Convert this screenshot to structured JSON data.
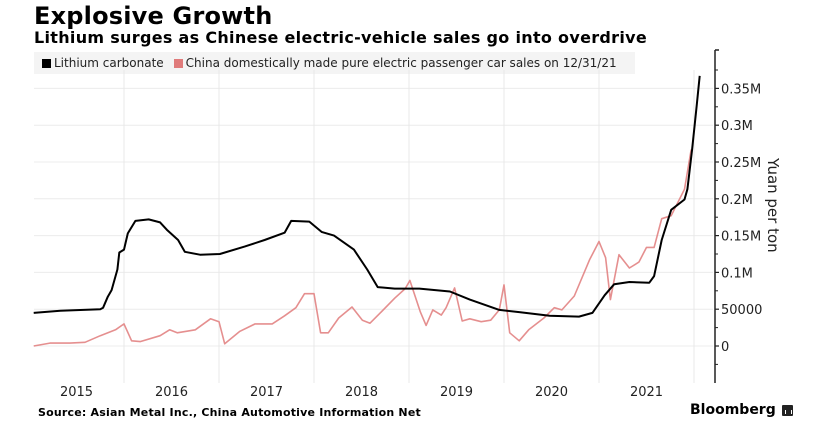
{
  "header": {
    "title": "Explosive Growth",
    "subtitle": "Lithium surges as Chinese electric-vehicle sales go into overdrive"
  },
  "footer": {
    "source": "Source: Asian Metal Inc., China Automotive Information Net",
    "brand": "Bloomberg",
    "brand_icon": "bloomberg-chart-icon"
  },
  "chart_data": {
    "type": "line",
    "title": "Explosive Growth",
    "subtitle": "Lithium surges as Chinese electric-vehicle sales go into overdrive",
    "xlabel": "",
    "ylabel": "Yuan per ton",
    "y_axis_side": "right",
    "ylim": [
      -45000,
      375000
    ],
    "xlim": [
      2015.0,
      2022.2
    ],
    "grid": true,
    "legend_position": "top-left",
    "x_tick_labels": [
      "2015",
      "2016",
      "2017",
      "2018",
      "2019",
      "2020",
      "2021"
    ],
    "y_ticks": [
      0,
      50000,
      100000,
      150000,
      200000,
      250000,
      300000,
      350000
    ],
    "y_tick_labels": [
      "0",
      "50000",
      "0.1M",
      "0.15M",
      "0.2M",
      "0.25M",
      "0.3M",
      "0.35M"
    ],
    "series": [
      {
        "name": "Lithium carbonate",
        "color": "#000000",
        "x": [
          2015.05,
          2015.33,
          2015.75,
          2015.78,
          2015.83,
          2015.87,
          2015.93,
          2015.95,
          2016.0,
          2016.04,
          2016.12,
          2016.26,
          2016.38,
          2016.45,
          2016.57,
          2016.64,
          2016.8,
          2017.01,
          2017.27,
          2017.48,
          2017.69,
          2017.76,
          2017.95,
          2018.08,
          2018.21,
          2018.42,
          2018.56,
          2018.67,
          2018.85,
          2019.11,
          2019.43,
          2019.64,
          2019.95,
          2020.16,
          2020.48,
          2020.79,
          2020.93,
          2021.06,
          2021.16,
          2021.32,
          2021.53,
          2021.58,
          2021.66,
          2021.76,
          2021.9,
          2021.93,
          2021.98,
          2022.03,
          2022.06
        ],
        "values": [
          45000,
          48000,
          50000,
          52000,
          67000,
          76000,
          104000,
          127000,
          131000,
          153000,
          170000,
          172000,
          168000,
          158000,
          144000,
          128000,
          124000,
          125000,
          135000,
          144000,
          154000,
          170000,
          169000,
          155000,
          150000,
          131000,
          104000,
          80000,
          78000,
          78000,
          74000,
          63000,
          49000,
          46000,
          41000,
          40000,
          45000,
          69000,
          84000,
          87000,
          86000,
          95000,
          144000,
          185000,
          199000,
          213000,
          267000,
          328000,
          367000
        ]
      },
      {
        "name": "China domestically made pure electric passenger car sales on 12/31/21",
        "color": "#e07b7b",
        "x": [
          2015.05,
          2015.22,
          2015.43,
          2015.59,
          2015.75,
          2015.91,
          2016.0,
          2016.08,
          2016.17,
          2016.38,
          2016.48,
          2016.56,
          2016.75,
          2016.91,
          2017.0,
          2017.06,
          2017.22,
          2017.38,
          2017.56,
          2017.69,
          2017.81,
          2017.9,
          2018.0,
          2018.07,
          2018.15,
          2018.26,
          2018.4,
          2018.51,
          2018.59,
          2018.69,
          2018.85,
          2018.96,
          2019.01,
          2019.12,
          2019.18,
          2019.25,
          2019.34,
          2019.39,
          2019.48,
          2019.56,
          2019.64,
          2019.76,
          2019.86,
          2019.95,
          2020.0,
          2020.06,
          2020.16,
          2020.26,
          2020.42,
          2020.53,
          2020.61,
          2020.74,
          2020.9,
          2021.0,
          2021.07,
          2021.12,
          2021.21,
          2021.32,
          2021.42,
          2021.5,
          2021.58,
          2021.66,
          2021.76,
          2021.9,
          2021.97
        ],
        "values": [
          0,
          4000,
          4000,
          5000,
          14000,
          22000,
          30000,
          7000,
          6000,
          14000,
          22000,
          18000,
          22000,
          37000,
          33000,
          3000,
          20000,
          30000,
          30000,
          41000,
          52000,
          71000,
          71000,
          18000,
          18000,
          38000,
          53000,
          35000,
          31000,
          44000,
          65000,
          78000,
          89000,
          46000,
          28000,
          49000,
          42000,
          52000,
          79000,
          34000,
          37000,
          33000,
          35000,
          49000,
          83000,
          18000,
          7000,
          22000,
          38000,
          52000,
          49000,
          68000,
          117000,
          142000,
          120000,
          63000,
          124000,
          106000,
          114000,
          134000,
          134000,
          173000,
          177000,
          213000,
          267000
        ]
      }
    ]
  }
}
